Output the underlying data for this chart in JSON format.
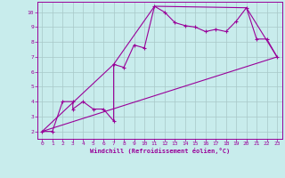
{
  "xlabel": "Windchill (Refroidissement éolien,°C)",
  "bg_color": "#c8ecec",
  "grid_color": "#a8c8c8",
  "line_color": "#990099",
  "xlim": [
    -0.5,
    23.5
  ],
  "ylim": [
    1.5,
    10.7
  ],
  "xticks": [
    0,
    1,
    2,
    3,
    4,
    5,
    6,
    7,
    8,
    9,
    10,
    11,
    12,
    13,
    14,
    15,
    16,
    17,
    18,
    19,
    20,
    21,
    22,
    23
  ],
  "yticks": [
    2,
    3,
    4,
    5,
    6,
    7,
    8,
    9,
    10
  ],
  "line1_x": [
    0,
    1,
    2,
    3,
    3,
    4,
    5,
    6,
    7,
    7,
    8,
    9,
    10,
    11,
    12,
    13,
    14,
    15,
    16,
    17,
    18,
    19,
    20,
    21,
    22,
    23
  ],
  "line1_y": [
    2,
    2,
    4,
    4,
    3.5,
    4,
    3.5,
    3.5,
    2.7,
    6.5,
    6.3,
    7.8,
    7.6,
    10.4,
    10.0,
    9.3,
    9.1,
    9.0,
    8.7,
    8.85,
    8.7,
    9.4,
    10.3,
    8.2,
    8.2,
    7.0
  ],
  "line2_x": [
    0,
    7,
    11,
    20,
    23
  ],
  "line2_y": [
    2,
    6.5,
    10.4,
    10.3,
    7.0
  ],
  "line3_x": [
    0,
    23
  ],
  "line3_y": [
    2.0,
    7.0
  ]
}
